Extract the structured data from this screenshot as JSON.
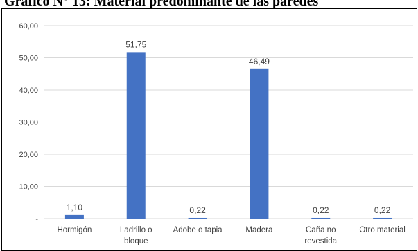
{
  "title": "Gráfico N° 13: Material predominante de las paredes",
  "colors": {
    "bar": "#4472C4",
    "grid": "#D9D9D9",
    "axis_text": "#404040",
    "value_text": "#404040"
  },
  "chart_data": {
    "type": "bar",
    "categories": [
      [
        "Hormigón"
      ],
      [
        "Ladrillo o",
        "bloque"
      ],
      [
        "Adobe o tapia"
      ],
      [
        "Madera"
      ],
      [
        "Caña no",
        "revestida"
      ],
      [
        "Otro material"
      ]
    ],
    "values": [
      1.1,
      51.75,
      0.22,
      46.49,
      0.22,
      0.22
    ],
    "value_labels": [
      "1,10",
      "51,75",
      "0,22",
      "46,49",
      "0,22",
      "0,22"
    ],
    "ylim": [
      0,
      60
    ],
    "yticks": [
      {
        "value": 0,
        "label": "-"
      },
      {
        "value": 10,
        "label": "10,00"
      },
      {
        "value": 20,
        "label": "20,00"
      },
      {
        "value": 30,
        "label": "30,00"
      },
      {
        "value": 40,
        "label": "40,00"
      },
      {
        "value": 50,
        "label": "50,00"
      },
      {
        "value": 60,
        "label": "60,00"
      }
    ],
    "grid": true,
    "legend": "none"
  }
}
